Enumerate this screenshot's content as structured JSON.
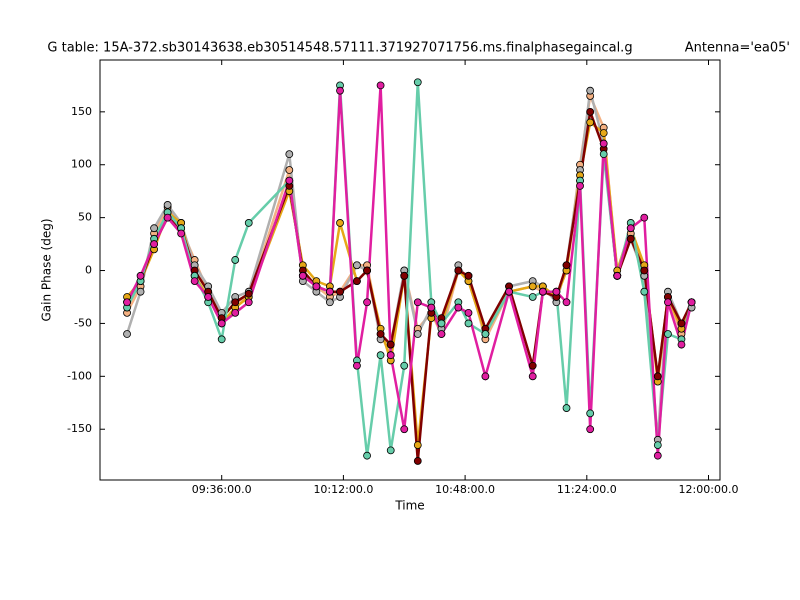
{
  "chart_data": {
    "type": "line",
    "title": "G table: 15A-372.sb30143638.eb30514548.57111.371927071756.ms.finalphasegaincal.g",
    "subtitle": "Antenna='ea05'",
    "x_label": "Time",
    "y_label": "Gain Phase (deg)",
    "x": [
      548,
      552,
      556,
      560,
      564,
      568,
      572,
      576,
      580,
      584,
      596,
      600,
      604,
      608,
      611,
      616,
      619,
      623,
      626,
      630,
      634,
      638,
      641,
      646,
      649,
      654,
      661,
      668,
      671,
      675,
      678,
      682,
      685,
      689,
      693,
      697,
      701,
      705,
      708,
      712,
      715
    ],
    "xlim": [
      540,
      723.4
    ],
    "xticks": [
      {
        "value": 576,
        "label": "09:36:00.0"
      },
      {
        "value": 612,
        "label": "10:12:00.0"
      },
      {
        "value": 648,
        "label": "10:48:00.0"
      },
      {
        "value": 684,
        "label": "11:24:00.0"
      },
      {
        "value": 720,
        "label": "12:00:00.0"
      }
    ],
    "ylim": [
      -198,
      199
    ],
    "yticks": [
      -150,
      -100,
      -50,
      0,
      50,
      100,
      150
    ],
    "series": [
      {
        "color": "#f4b183",
        "values": [
          -40,
          -15,
          35,
          60,
          40,
          10,
          -20,
          -45,
          -30,
          -25,
          95,
          -5,
          -15,
          -25,
          -20,
          5,
          5,
          -60,
          -80,
          0,
          -55,
          -40,
          -60,
          0,
          -5,
          -65,
          -20,
          -15,
          -20,
          -25,
          0,
          100,
          165,
          135,
          -5,
          35,
          0,
          -100,
          -25,
          -60,
          -30
        ]
      },
      {
        "color": "#b0b0b0",
        "values": [
          -60,
          -20,
          40,
          62,
          45,
          5,
          -15,
          -40,
          -25,
          -20,
          110,
          -10,
          -20,
          -30,
          -25,
          5,
          0,
          -65,
          -70,
          0,
          -60,
          -35,
          -55,
          5,
          -10,
          -60,
          -15,
          -10,
          -15,
          -30,
          5,
          95,
          170,
          120,
          -5,
          30,
          -5,
          -160,
          -20,
          -50,
          -35
        ]
      },
      {
        "color": "#e6a817",
        "values": [
          -25,
          -10,
          20,
          55,
          45,
          -5,
          -25,
          -50,
          -35,
          -25,
          75,
          5,
          -10,
          -15,
          45,
          -10,
          0,
          -55,
          -85,
          -5,
          -165,
          -45,
          -50,
          0,
          -10,
          -60,
          -20,
          -15,
          -15,
          -25,
          0,
          90,
          140,
          130,
          0,
          40,
          5,
          -105,
          -25,
          -55,
          -30
        ]
      },
      {
        "color": "#800000",
        "values": [
          -30,
          -10,
          25,
          50,
          40,
          0,
          -20,
          -45,
          -30,
          -22,
          80,
          0,
          -15,
          -20,
          -20,
          -10,
          0,
          -60,
          -70,
          -5,
          -180,
          -40,
          -45,
          0,
          -5,
          -55,
          -15,
          -90,
          -20,
          -25,
          5,
          85,
          150,
          115,
          -5,
          30,
          0,
          -100,
          -25,
          -50,
          -30
        ]
      },
      {
        "color": "#66cdaa",
        "values": [
          -35,
          -10,
          30,
          55,
          40,
          -5,
          -30,
          -65,
          10,
          45,
          85,
          -5,
          -15,
          -20,
          175,
          -85,
          -175,
          -80,
          -170,
          -90,
          178,
          -30,
          -50,
          -30,
          -50,
          -60,
          -20,
          -25,
          -20,
          -20,
          -130,
          85,
          -135,
          110,
          -5,
          45,
          -20,
          -165,
          -60,
          -65,
          -30
        ]
      },
      {
        "color": "#e01ea0",
        "values": [
          -30,
          -5,
          25,
          50,
          35,
          -10,
          -25,
          -50,
          -40,
          -30,
          85,
          -5,
          -15,
          -20,
          170,
          -90,
          -30,
          175,
          -80,
          -150,
          -30,
          -35,
          -60,
          -35,
          -40,
          -100,
          -20,
          -100,
          -20,
          -20,
          -30,
          80,
          -150,
          120,
          -5,
          40,
          50,
          -175,
          -30,
          -70,
          -30
        ]
      }
    ]
  }
}
